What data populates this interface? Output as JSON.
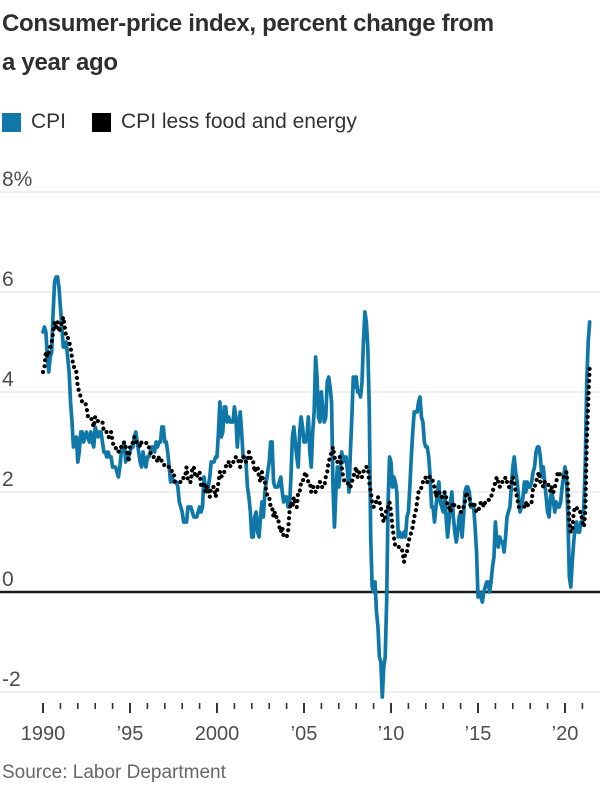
{
  "title_lines": [
    "Consumer-price index, percent change from",
    "a year ago"
  ],
  "legend": {
    "items": [
      {
        "label": "CPI"
      },
      {
        "label": "CPI less food and energy"
      }
    ]
  },
  "source": "Source: Labor Department",
  "colors": {
    "cpi_line": "#0f78a8",
    "core_line": "#000000",
    "grid": "#dcdcdc",
    "zero_line": "#1a1a1a",
    "tick": "#333333",
    "axis_text": "#4d4d4d",
    "title_text": "#2f2f2f",
    "source_text": "#666666"
  },
  "chart_data": {
    "type": "line",
    "title": "Consumer-price index, percent change from a year ago",
    "xlabel": "",
    "ylabel": "percent change from a year ago",
    "x_axis": {
      "frequency": "monthly",
      "start_year": 1990,
      "start_month": 1,
      "end_year": 2021,
      "end_month": 6,
      "minor_tick_interval_years": 1,
      "first_tick_year": 1990,
      "last_tick_year": 2021,
      "major_ticks": [
        {
          "year": 1990,
          "label": "1990"
        },
        {
          "year": 1995,
          "label": "’95"
        },
        {
          "year": 2000,
          "label": "2000"
        },
        {
          "year": 2005,
          "label": "’05"
        },
        {
          "year": 2010,
          "label": "’10"
        },
        {
          "year": 2015,
          "label": "’15"
        },
        {
          "year": 2020,
          "label": "’20"
        }
      ]
    },
    "y_axis": {
      "ticks": [
        {
          "value": 8,
          "label": "8%"
        },
        {
          "value": 6,
          "label": "6"
        },
        {
          "value": 4,
          "label": "4"
        },
        {
          "value": 2,
          "label": "2"
        },
        {
          "value": 0,
          "label": "0"
        },
        {
          "value": -2,
          "label": "-2"
        }
      ],
      "ylim": [
        -2.6,
        8.6
      ],
      "zero_line": true,
      "grid": true
    },
    "legend_position": "top-left",
    "series": [
      {
        "name": "CPI",
        "style": "solid",
        "color": "#0f78a8",
        "values": [
          5.2,
          5.3,
          5.2,
          4.7,
          4.4,
          4.7,
          4.8,
          5.6,
          6.2,
          6.3,
          6.3,
          6.1,
          5.7,
          5.3,
          4.9,
          4.9,
          5.0,
          4.7,
          4.4,
          3.8,
          3.4,
          2.9,
          3.0,
          3.1,
          2.6,
          2.8,
          3.2,
          3.2,
          3.0,
          3.1,
          3.2,
          3.1,
          3.0,
          3.2,
          3.0,
          2.9,
          3.3,
          3.2,
          3.1,
          3.2,
          3.2,
          3.0,
          2.8,
          2.8,
          2.7,
          2.8,
          2.7,
          2.7,
          2.5,
          2.5,
          2.5,
          2.4,
          2.3,
          2.5,
          2.8,
          2.9,
          3.0,
          2.6,
          2.7,
          2.7,
          2.8,
          2.9,
          2.9,
          3.1,
          3.2,
          3.0,
          2.8,
          2.6,
          2.5,
          2.8,
          2.6,
          2.5,
          2.7,
          2.7,
          2.8,
          2.9,
          2.9,
          2.8,
          3.0,
          2.9,
          3.0,
          3.0,
          3.3,
          3.3,
          3.0,
          3.0,
          2.8,
          2.5,
          2.2,
          2.3,
          2.2,
          2.2,
          2.2,
          2.1,
          1.8,
          1.7,
          1.6,
          1.4,
          1.4,
          1.4,
          1.7,
          1.7,
          1.7,
          1.6,
          1.5,
          1.5,
          1.5,
          1.6,
          1.7,
          1.6,
          1.7,
          2.3,
          2.1,
          2.0,
          2.1,
          2.3,
          2.6,
          2.6,
          2.6,
          2.7,
          2.7,
          3.2,
          3.8,
          3.1,
          3.2,
          3.7,
          3.7,
          3.4,
          3.5,
          3.4,
          3.4,
          3.4,
          3.7,
          3.5,
          2.9,
          3.3,
          3.6,
          3.2,
          2.7,
          2.7,
          2.6,
          2.1,
          1.9,
          1.6,
          1.1,
          1.1,
          1.5,
          1.6,
          1.2,
          1.1,
          1.5,
          1.8,
          1.5,
          2.0,
          2.2,
          2.4,
          2.6,
          3.0,
          3.0,
          2.2,
          2.1,
          2.1,
          2.1,
          2.2,
          2.3,
          2.0,
          1.8,
          1.9,
          1.9,
          1.7,
          1.7,
          2.3,
          3.1,
          3.3,
          3.0,
          2.7,
          2.5,
          3.2,
          3.5,
          3.3,
          3.0,
          3.0,
          3.1,
          3.5,
          2.8,
          2.5,
          3.2,
          3.6,
          4.7,
          4.3,
          3.5,
          3.4,
          4.0,
          3.6,
          3.4,
          3.5,
          4.2,
          4.3,
          4.1,
          3.8,
          2.1,
          1.3,
          2.0,
          2.5,
          2.1,
          2.4,
          2.8,
          2.6,
          2.7,
          2.7,
          2.4,
          2.0,
          2.8,
          3.5,
          4.3,
          4.1,
          4.3,
          4.0,
          4.0,
          3.9,
          4.2,
          5.0,
          5.6,
          5.4,
          4.9,
          3.7,
          1.1,
          0.1,
          0.0,
          0.2,
          -0.4,
          -0.7,
          -1.3,
          -1.4,
          -2.1,
          -1.5,
          -1.3,
          -0.2,
          1.8,
          2.7,
          2.6,
          2.1,
          2.3,
          2.2,
          2.0,
          1.1,
          1.2,
          1.1,
          1.1,
          1.2,
          1.1,
          1.5,
          1.6,
          2.1,
          2.7,
          3.2,
          3.6,
          3.6,
          3.6,
          3.8,
          3.9,
          3.5,
          3.4,
          3.0,
          2.9,
          2.9,
          2.7,
          2.3,
          1.7,
          1.7,
          1.4,
          1.7,
          2.0,
          2.2,
          1.8,
          1.7,
          1.6,
          2.0,
          1.5,
          1.1,
          1.4,
          1.8,
          2.0,
          1.5,
          1.2,
          1.0,
          1.2,
          1.5,
          1.6,
          1.1,
          1.5,
          2.0,
          2.1,
          2.1,
          2.0,
          1.7,
          1.7,
          1.7,
          1.3,
          0.8,
          -0.1,
          0.0,
          -0.1,
          -0.2,
          0.0,
          0.1,
          0.2,
          0.2,
          0.0,
          0.2,
          0.5,
          0.7,
          1.4,
          1.0,
          0.9,
          1.1,
          1.0,
          1.0,
          0.8,
          1.1,
          1.5,
          1.6,
          1.7,
          2.1,
          2.5,
          2.7,
          2.4,
          2.2,
          1.9,
          1.6,
          1.7,
          1.9,
          2.2,
          2.0,
          2.2,
          2.1,
          2.1,
          2.2,
          2.4,
          2.5,
          2.8,
          2.9,
          2.9,
          2.7,
          2.3,
          2.5,
          2.2,
          1.9,
          1.6,
          1.5,
          1.9,
          2.0,
          1.8,
          1.6,
          1.8,
          1.7,
          1.7,
          1.8,
          2.1,
          2.3,
          2.5,
          2.3,
          1.5,
          0.3,
          0.1,
          0.6,
          1.0,
          1.3,
          1.4,
          1.2,
          1.2,
          1.4,
          1.4,
          1.7,
          2.6,
          4.2,
          5.0,
          5.4
        ]
      },
      {
        "name": "CPI less food and energy",
        "style": "dotted",
        "color": "#000000",
        "values": [
          4.4,
          4.5,
          4.8,
          4.7,
          4.8,
          4.9,
          5.0,
          5.2,
          5.4,
          5.3,
          5.4,
          5.2,
          5.3,
          5.4,
          5.5,
          5.3,
          5.1,
          5.1,
          5.0,
          4.9,
          4.7,
          4.5,
          4.5,
          4.4,
          4.1,
          4.0,
          3.9,
          3.8,
          3.8,
          3.8,
          3.7,
          3.5,
          3.5,
          3.5,
          3.4,
          3.3,
          3.5,
          3.5,
          3.4,
          3.4,
          3.4,
          3.4,
          3.2,
          3.2,
          3.2,
          3.1,
          3.1,
          3.2,
          3.0,
          2.9,
          2.9,
          2.8,
          2.8,
          2.9,
          2.9,
          2.9,
          3.0,
          2.9,
          2.8,
          2.6,
          2.9,
          2.9,
          3.0,
          3.1,
          3.0,
          3.0,
          3.0,
          2.9,
          3.0,
          3.0,
          3.0,
          3.0,
          2.9,
          2.9,
          2.8,
          2.7,
          2.7,
          2.7,
          2.7,
          2.6,
          2.7,
          2.7,
          2.6,
          2.6,
          2.5,
          2.5,
          2.5,
          2.5,
          2.5,
          2.4,
          2.4,
          2.2,
          2.2,
          2.2,
          2.2,
          2.2,
          2.2,
          2.3,
          2.3,
          2.5,
          2.2,
          2.2,
          2.2,
          2.5,
          2.5,
          2.3,
          2.3,
          2.4,
          2.4,
          2.1,
          2.1,
          2.2,
          2.0,
          2.1,
          2.1,
          1.9,
          2.1,
          2.1,
          2.1,
          1.9,
          2.0,
          2.2,
          2.4,
          2.3,
          2.4,
          2.4,
          2.5,
          2.6,
          2.6,
          2.5,
          2.6,
          2.6,
          2.6,
          2.7,
          2.7,
          2.6,
          2.5,
          2.7,
          2.7,
          2.7,
          2.6,
          2.6,
          2.8,
          2.7,
          2.6,
          2.6,
          2.4,
          2.5,
          2.5,
          2.3,
          2.2,
          2.4,
          2.2,
          2.2,
          2.0,
          1.9,
          1.9,
          1.7,
          1.7,
          1.5,
          1.6,
          1.5,
          1.5,
          1.3,
          1.2,
          1.3,
          1.1,
          1.1,
          1.1,
          1.2,
          1.6,
          1.8,
          1.7,
          1.9,
          1.8,
          1.7,
          2.0,
          2.0,
          2.2,
          2.2,
          2.3,
          2.4,
          2.3,
          2.2,
          2.2,
          2.0,
          2.1,
          2.1,
          2.0,
          2.1,
          2.1,
          2.2,
          2.1,
          2.1,
          2.1,
          2.3,
          2.4,
          2.6,
          2.7,
          2.8,
          2.9,
          2.7,
          2.6,
          2.6,
          2.7,
          2.7,
          2.5,
          2.3,
          2.2,
          2.2,
          2.2,
          2.1,
          2.1,
          2.2,
          2.3,
          2.4,
          2.5,
          2.3,
          2.4,
          2.3,
          2.3,
          2.4,
          2.5,
          2.5,
          2.5,
          2.2,
          2.0,
          1.8,
          1.7,
          1.8,
          1.8,
          1.9,
          1.8,
          1.7,
          1.5,
          1.4,
          1.5,
          1.7,
          1.7,
          1.8,
          1.6,
          1.3,
          1.1,
          0.9,
          0.9,
          0.9,
          0.9,
          0.9,
          0.8,
          0.6,
          0.8,
          0.8,
          1.0,
          1.1,
          1.2,
          1.3,
          1.5,
          1.6,
          1.8,
          2.0,
          2.0,
          2.1,
          2.2,
          2.2,
          2.3,
          2.2,
          2.3,
          2.3,
          2.3,
          2.2,
          2.1,
          1.9,
          2.0,
          2.0,
          1.9,
          1.9,
          1.9,
          2.0,
          1.9,
          1.7,
          1.7,
          1.6,
          1.7,
          1.8,
          1.7,
          1.7,
          1.7,
          1.7,
          1.6,
          1.6,
          1.7,
          1.8,
          2.0,
          1.9,
          1.9,
          1.7,
          1.7,
          1.8,
          1.7,
          1.6,
          1.6,
          1.7,
          1.8,
          1.8,
          1.7,
          1.8,
          1.8,
          1.8,
          1.9,
          1.9,
          2.0,
          2.1,
          2.2,
          2.3,
          2.2,
          2.1,
          2.2,
          2.2,
          2.2,
          2.3,
          2.2,
          2.1,
          2.1,
          2.2,
          2.3,
          2.2,
          2.0,
          1.9,
          1.7,
          1.7,
          1.7,
          1.7,
          1.7,
          1.8,
          1.7,
          1.8,
          1.8,
          1.8,
          2.1,
          2.1,
          2.2,
          2.3,
          2.4,
          2.2,
          2.2,
          2.1,
          2.2,
          2.2,
          2.2,
          2.1,
          2.0,
          2.1,
          2.0,
          2.1,
          2.2,
          2.4,
          2.4,
          2.3,
          2.3,
          2.3,
          2.3,
          2.4,
          2.1,
          1.4,
          1.2,
          1.2,
          1.6,
          1.7,
          1.7,
          1.6,
          1.6,
          1.6,
          1.4,
          1.3,
          1.6,
          3.0,
          3.8,
          4.5
        ]
      }
    ]
  }
}
